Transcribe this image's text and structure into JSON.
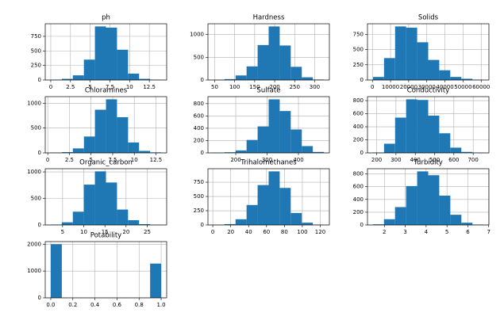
{
  "chart_data": [
    {
      "type": "histogram",
      "title": "ph",
      "color": "#1f77b4",
      "grid": true,
      "bins": [
        0,
        1.4,
        2.8,
        4.2,
        5.6,
        7,
        8.4,
        9.8,
        11.2,
        12.6,
        14
      ],
      "values": [
        5,
        20,
        80,
        350,
        920,
        900,
        520,
        110,
        20,
        5
      ],
      "xlim": [
        -0.7,
        14.7
      ],
      "xticks": [
        0,
        2.5,
        5,
        7.5,
        10,
        12.5
      ],
      "ylim": [
        0,
        966
      ],
      "yticks": [
        0,
        250,
        500,
        750
      ]
    },
    {
      "type": "histogram",
      "title": "Hardness",
      "color": "#1f77b4",
      "grid": true,
      "bins": [
        47,
        74.6,
        102.2,
        129.8,
        157.4,
        185,
        212.6,
        240.2,
        267.8,
        295.4,
        323
      ],
      "values": [
        5,
        20,
        100,
        300,
        770,
        1180,
        760,
        290,
        60,
        10
      ],
      "xlim": [
        33.2,
        336.8
      ],
      "xticks": [
        50,
        100,
        150,
        200,
        250,
        300
      ],
      "ylim": [
        0,
        1239
      ],
      "yticks": [
        0,
        500,
        1000
      ]
    },
    {
      "type": "histogram",
      "title": "Solids",
      "color": "#1f77b4",
      "grid": true,
      "bins": [
        320,
        6411,
        12502,
        18593,
        24684,
        30775,
        36866,
        42957,
        49048,
        55139,
        61230
      ],
      "values": [
        50,
        360,
        880,
        860,
        620,
        330,
        160,
        50,
        20,
        5
      ],
      "xlim": [
        -2725,
        64275
      ],
      "xticks": [
        0,
        10000,
        20000,
        30000,
        40000,
        50000,
        60000
      ],
      "ylim": [
        0,
        924
      ],
      "yticks": [
        0,
        250,
        500,
        750
      ]
    },
    {
      "type": "histogram",
      "title": "Chloramines",
      "color": "#1f77b4",
      "grid": true,
      "bins": [
        0.35,
        1.63,
        2.9,
        4.18,
        5.45,
        6.73,
        8.0,
        9.28,
        10.55,
        11.83,
        13.1
      ],
      "values": [
        5,
        15,
        90,
        330,
        870,
        1080,
        720,
        210,
        40,
        10
      ],
      "xlim": [
        -0.29,
        13.74
      ],
      "xticks": [
        0,
        2.5,
        5,
        7.5,
        10,
        12.5
      ],
      "ylim": [
        0,
        1134
      ],
      "yticks": [
        0,
        500,
        1000
      ]
    },
    {
      "type": "histogram",
      "title": "Sulfate",
      "color": "#1f77b4",
      "grid": true,
      "bins": [
        129,
        164.2,
        199.4,
        234.6,
        269.8,
        305,
        340.2,
        375.4,
        410.6,
        445.8,
        481
      ],
      "values": [
        3,
        10,
        40,
        210,
        430,
        870,
        680,
        380,
        110,
        15
      ],
      "xlim": [
        111.4,
        498.6
      ],
      "xticks": [
        200,
        300,
        400
      ],
      "ylim": [
        0,
        914
      ],
      "yticks": [
        0,
        200,
        400,
        600,
        800
      ]
    },
    {
      "type": "histogram",
      "title": "Conductivity",
      "color": "#1f77b4",
      "grid": true,
      "bins": [
        181,
        238.2,
        295.4,
        352.6,
        409.8,
        467,
        524.2,
        581.4,
        638.6,
        695.8,
        753
      ],
      "values": [
        5,
        140,
        540,
        820,
        810,
        570,
        300,
        80,
        15,
        3
      ],
      "xlim": [
        152.4,
        781.6
      ],
      "xticks": [
        200,
        300,
        400,
        500,
        600,
        700
      ],
      "ylim": [
        0,
        861
      ],
      "yticks": [
        0,
        200,
        400,
        600,
        800
      ]
    },
    {
      "type": "histogram",
      "title": "Organic_carbon",
      "color": "#1f77b4",
      "grid": true,
      "bins": [
        2.2,
        4.81,
        7.42,
        10.03,
        12.64,
        15.25,
        17.86,
        20.47,
        23.08,
        25.69,
        28.3
      ],
      "values": [
        5,
        50,
        250,
        760,
        1010,
        800,
        290,
        90,
        15,
        3
      ],
      "xlim": [
        0.9,
        29.6
      ],
      "xticks": [
        5,
        10,
        15,
        20,
        25
      ],
      "ylim": [
        0,
        1060
      ],
      "yticks": [
        0,
        500,
        1000
      ]
    },
    {
      "type": "histogram",
      "title": "Trihalomethanes",
      "color": "#1f77b4",
      "grid": true,
      "bins": [
        0.74,
        13.07,
        25.4,
        37.73,
        50.06,
        62.39,
        74.72,
        87.05,
        99.38,
        111.71,
        124.04
      ],
      "values": [
        3,
        15,
        100,
        350,
        700,
        940,
        650,
        210,
        40,
        5
      ],
      "xlim": [
        -5.4,
        130.2
      ],
      "xticks": [
        0,
        20,
        40,
        60,
        80,
        100,
        120
      ],
      "ylim": [
        0,
        987
      ],
      "yticks": [
        0,
        250,
        500,
        750
      ]
    },
    {
      "type": "histogram",
      "title": "Turbidity",
      "color": "#1f77b4",
      "grid": true,
      "bins": [
        1.45,
        1.98,
        2.51,
        3.04,
        3.57,
        4.1,
        4.63,
        5.16,
        5.69,
        6.22,
        6.75
      ],
      "values": [
        10,
        90,
        280,
        610,
        840,
        780,
        460,
        160,
        35,
        5
      ],
      "xlim": [
        1.19,
        7.01
      ],
      "xticks": [
        2,
        3,
        4,
        5,
        6,
        7
      ],
      "ylim": [
        0,
        882
      ],
      "yticks": [
        0,
        200,
        400,
        600,
        800
      ]
    },
    {
      "type": "histogram",
      "title": "Potability",
      "color": "#1f77b4",
      "grid": true,
      "bins": [
        0,
        0.1,
        0.2,
        0.3,
        0.4,
        0.5,
        0.6,
        0.7,
        0.8,
        0.9,
        1
      ],
      "values": [
        1998,
        0,
        0,
        0,
        0,
        0,
        0,
        0,
        0,
        1278
      ],
      "xlim": [
        -0.05,
        1.05
      ],
      "xticks": [
        {
          "value": 0,
          "label": "0.0"
        },
        {
          "value": 0.2,
          "label": "0.2"
        },
        {
          "value": 0.4,
          "label": "0.4"
        },
        {
          "value": 0.6,
          "label": "0.6"
        },
        {
          "value": 0.8,
          "label": "0.8"
        },
        {
          "value": 1,
          "label": "1.0"
        }
      ],
      "ylim": [
        0,
        2098
      ],
      "yticks": [
        0,
        1000,
        2000
      ]
    }
  ]
}
